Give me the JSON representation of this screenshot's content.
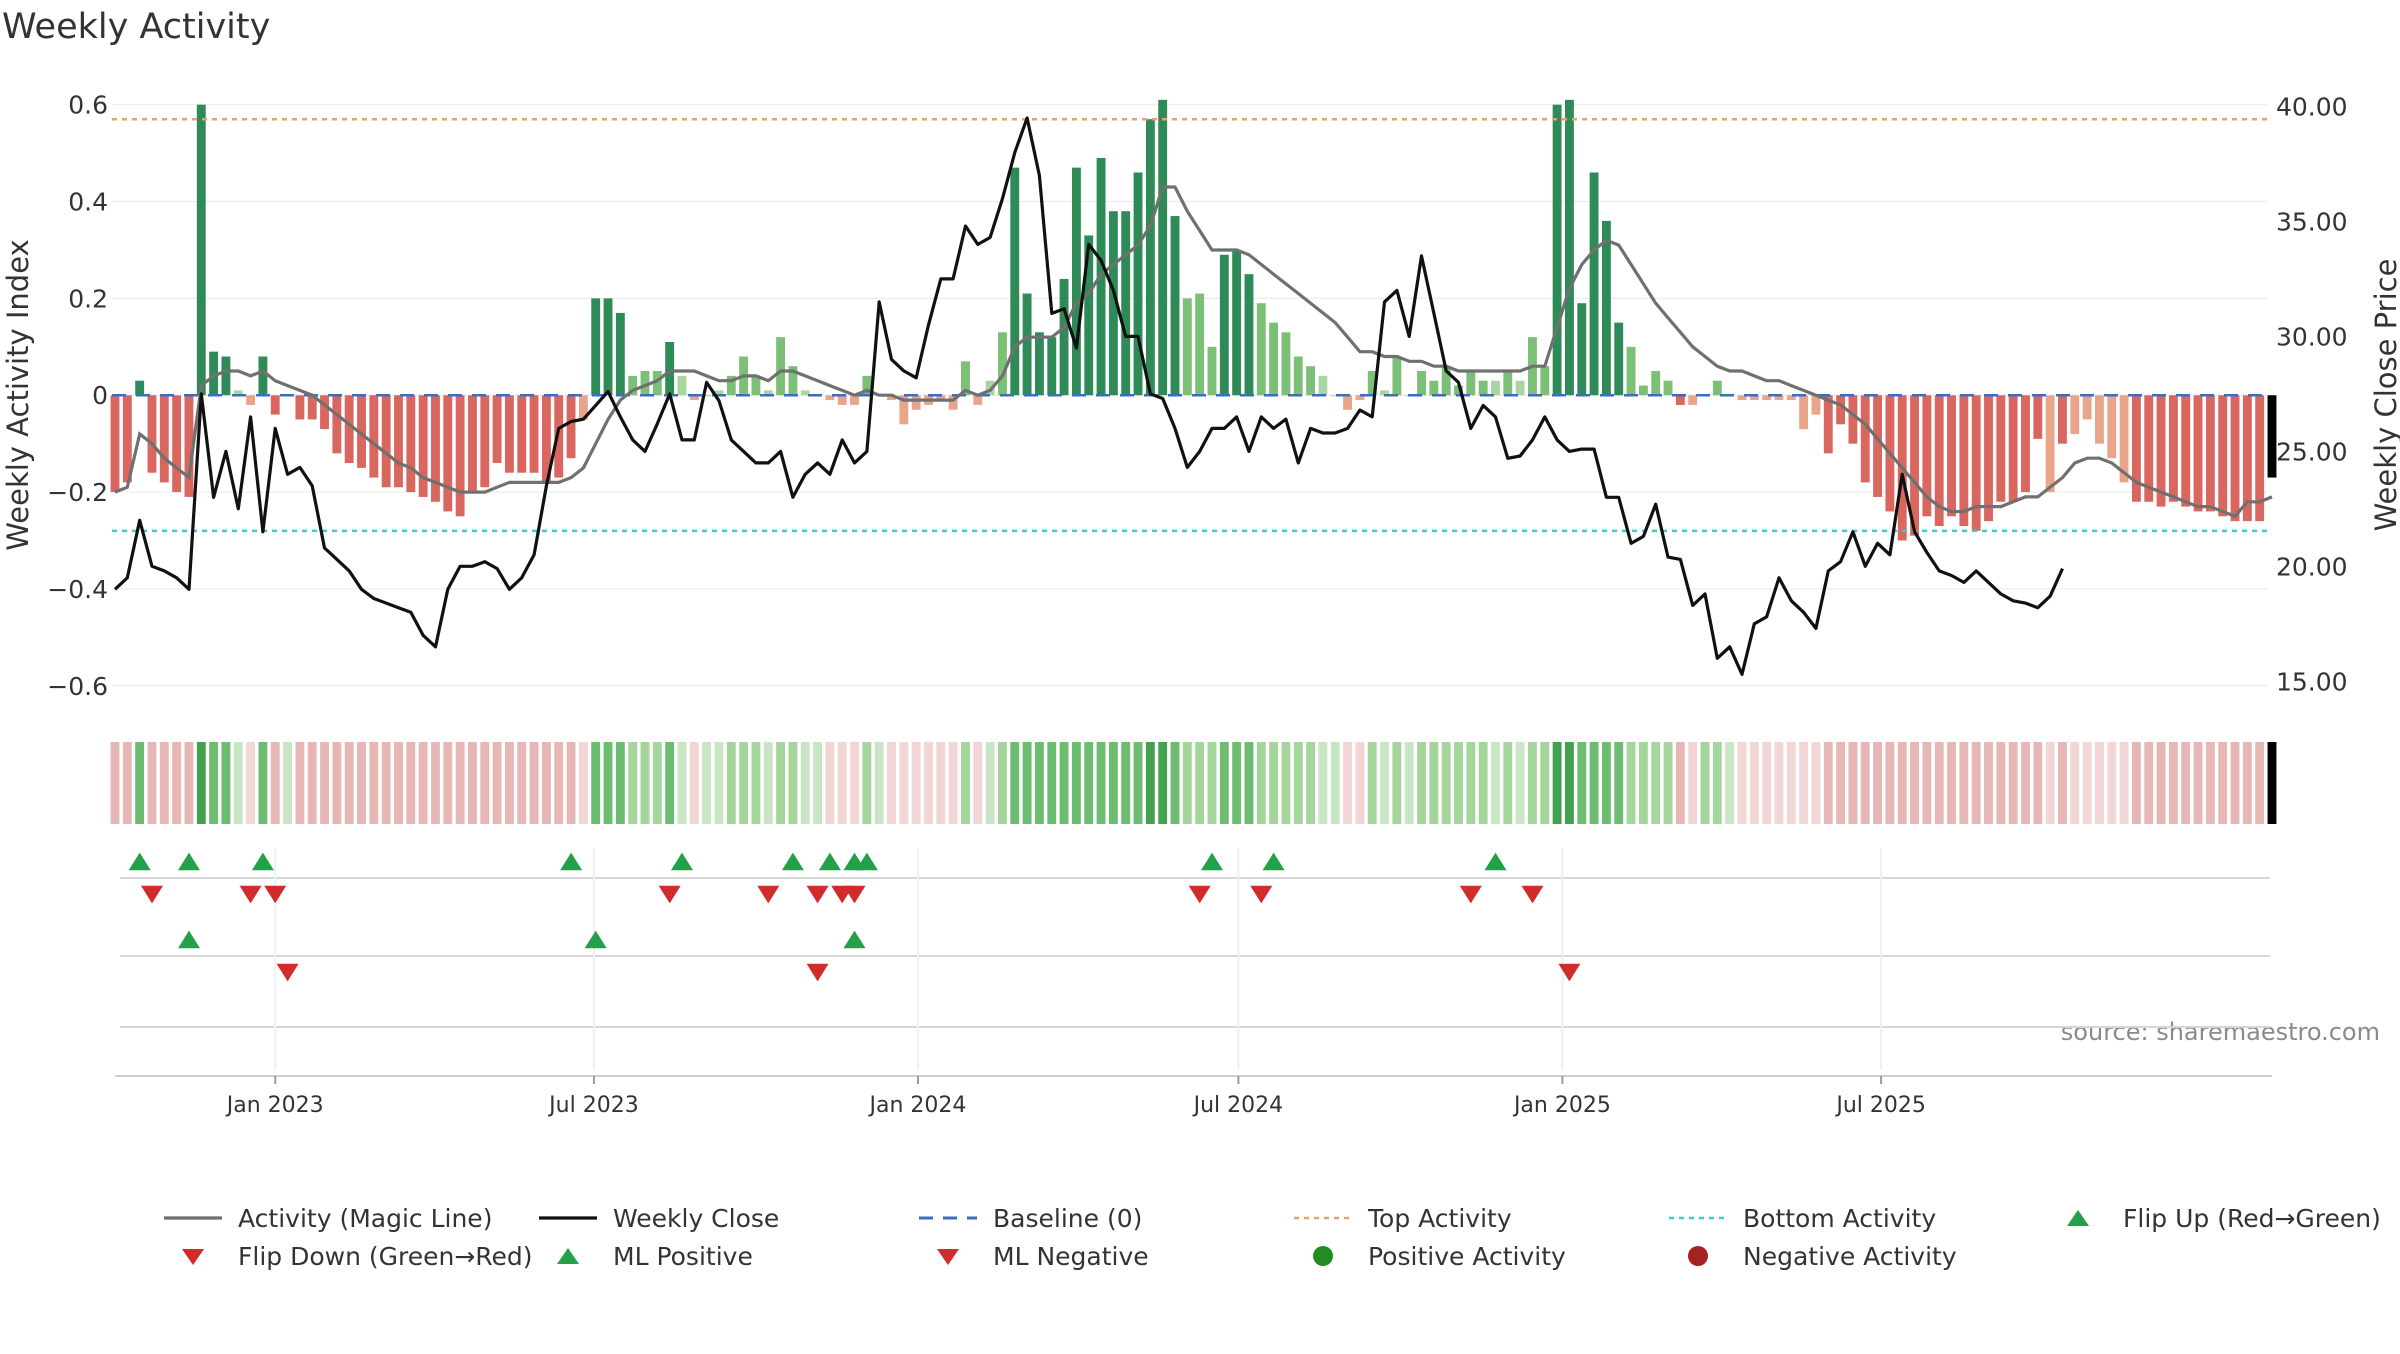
{
  "chart_data": {
    "type": "bar",
    "title": "Weekly Activity",
    "ylabel_left": "Weekly Activity Index",
    "ylabel_right": "Weekly Close Price",
    "source": "source: sharemaestro.com",
    "ylim_left": [
      -0.65,
      0.62
    ],
    "ylim_right": [
      13.75,
      40.5
    ],
    "yticks_left": [
      0.6,
      0.4,
      0.2,
      0,
      -0.2,
      -0.4,
      -0.6
    ],
    "yticks_left_labels": [
      "0.6",
      "0.4",
      "0.2",
      "0",
      "−0.2",
      "−0.4",
      "−0.6"
    ],
    "yticks_right": [
      40,
      35,
      30,
      25,
      20,
      15
    ],
    "yticks_right_labels": [
      "40.00",
      "35.00",
      "30.00",
      "25.00",
      "20.00",
      "15.00"
    ],
    "x_start": "2022-10-02",
    "x_step_days": 7,
    "x_tick_labels": [
      {
        "date": "2023-01-01",
        "label": "Jan 2023"
      },
      {
        "date": "2023-07-01",
        "label": "Jul 2023"
      },
      {
        "date": "2024-01-01",
        "label": "Jan 2024"
      },
      {
        "date": "2024-07-01",
        "label": "Jul 2024"
      },
      {
        "date": "2025-01-01",
        "label": "Jan 2025"
      },
      {
        "date": "2025-07-01",
        "label": "Jul 2025"
      }
    ],
    "top_activity": 0.57,
    "bottom_activity": -0.28,
    "baseline": 0,
    "weekly_activity": [
      -0.2,
      -0.18,
      0.03,
      -0.16,
      -0.18,
      -0.2,
      -0.21,
      0.6,
      0.09,
      0.08,
      0.01,
      -0.02,
      0.08,
      -0.04,
      0.0,
      -0.05,
      -0.05,
      -0.07,
      -0.12,
      -0.14,
      -0.15,
      -0.17,
      -0.19,
      -0.19,
      -0.2,
      -0.21,
      -0.22,
      -0.24,
      -0.25,
      -0.2,
      -0.19,
      -0.14,
      -0.16,
      -0.16,
      -0.16,
      -0.18,
      -0.17,
      -0.13,
      -0.05,
      0.2,
      0.2,
      0.17,
      0.04,
      0.05,
      0.05,
      0.11,
      0.04,
      -0.01,
      0.0,
      0.01,
      0.04,
      0.08,
      0.04,
      0.01,
      0.12,
      0.06,
      0.01,
      0.0,
      -0.01,
      -0.02,
      -0.02,
      0.04,
      0.0,
      -0.01,
      -0.06,
      -0.03,
      -0.02,
      -0.01,
      -0.03,
      0.07,
      -0.02,
      0.03,
      0.13,
      0.47,
      0.21,
      0.13,
      0.12,
      0.24,
      0.47,
      0.33,
      0.49,
      0.38,
      0.38,
      0.46,
      0.57,
      0.61,
      0.37,
      0.2,
      0.21,
      0.1,
      0.29,
      0.3,
      0.25,
      0.19,
      0.15,
      0.13,
      0.08,
      0.06,
      0.04,
      0.0,
      -0.03,
      -0.01,
      0.05,
      0.01,
      0.08,
      0.0,
      0.05,
      0.03,
      0.06,
      0.02,
      0.05,
      0.03,
      0.03,
      0.05,
      0.03,
      0.12,
      0.06,
      0.6,
      0.61,
      0.19,
      0.46,
      0.36,
      0.15,
      0.1,
      0.02,
      0.05,
      0.03,
      -0.02,
      -0.02,
      0.0,
      0.03,
      0.0,
      -0.01,
      -0.01,
      -0.01,
      -0.01,
      -0.01,
      -0.07,
      -0.04,
      -0.12,
      -0.06,
      -0.1,
      -0.18,
      -0.21,
      -0.24,
      -0.3,
      -0.29,
      -0.25,
      -0.27,
      -0.25,
      -0.27,
      -0.28,
      -0.26,
      -0.22,
      -0.22,
      -0.2,
      -0.09,
      -0.2,
      -0.1,
      -0.08,
      -0.05,
      -0.1,
      -0.13,
      -0.18,
      -0.22,
      -0.22,
      -0.23,
      -0.22,
      -0.23,
      -0.24,
      -0.24,
      -0.25,
      -0.26,
      -0.26,
      -0.26,
      -0.17
    ],
    "magic_line": [
      -0.2,
      -0.19,
      -0.08,
      -0.1,
      -0.13,
      -0.15,
      -0.17,
      0.02,
      0.04,
      0.05,
      0.05,
      0.04,
      0.05,
      0.03,
      0.02,
      0.01,
      0.0,
      -0.02,
      -0.04,
      -0.06,
      -0.08,
      -0.1,
      -0.12,
      -0.14,
      -0.15,
      -0.17,
      -0.18,
      -0.19,
      -0.2,
      -0.2,
      -0.2,
      -0.19,
      -0.18,
      -0.18,
      -0.18,
      -0.18,
      -0.18,
      -0.17,
      -0.15,
      -0.1,
      -0.05,
      -0.01,
      0.01,
      0.02,
      0.03,
      0.05,
      0.05,
      0.05,
      0.04,
      0.03,
      0.03,
      0.04,
      0.04,
      0.03,
      0.05,
      0.05,
      0.04,
      0.03,
      0.02,
      0.01,
      0.0,
      0.01,
      0.0,
      0.0,
      -0.01,
      -0.01,
      -0.01,
      -0.01,
      -0.01,
      0.01,
      0.0,
      0.01,
      0.04,
      0.1,
      0.12,
      0.12,
      0.12,
      0.14,
      0.19,
      0.21,
      0.25,
      0.27,
      0.29,
      0.31,
      0.35,
      0.43,
      0.43,
      0.38,
      0.34,
      0.3,
      0.3,
      0.3,
      0.29,
      0.27,
      0.25,
      0.23,
      0.21,
      0.19,
      0.17,
      0.15,
      0.12,
      0.09,
      0.09,
      0.08,
      0.08,
      0.07,
      0.07,
      0.06,
      0.06,
      0.05,
      0.05,
      0.05,
      0.05,
      0.05,
      0.05,
      0.06,
      0.06,
      0.14,
      0.22,
      0.27,
      0.3,
      0.32,
      0.31,
      0.27,
      0.23,
      0.19,
      0.16,
      0.13,
      0.1,
      0.08,
      0.06,
      0.05,
      0.05,
      0.04,
      0.03,
      0.03,
      0.02,
      0.01,
      0.0,
      -0.01,
      -0.02,
      -0.04,
      -0.06,
      -0.09,
      -0.12,
      -0.15,
      -0.18,
      -0.21,
      -0.23,
      -0.24,
      -0.24,
      -0.23,
      -0.23,
      -0.23,
      -0.22,
      -0.21,
      -0.21,
      -0.19,
      -0.17,
      -0.14,
      -0.13,
      -0.13,
      -0.14,
      -0.16,
      -0.18,
      -0.19,
      -0.2,
      -0.21,
      -0.22,
      -0.23,
      -0.23,
      -0.24,
      -0.25,
      -0.22,
      -0.22,
      -0.21
    ],
    "weekly_close": [
      19.0,
      19.5,
      22.0,
      20.0,
      19.8,
      19.5,
      19.0,
      27.5,
      23.0,
      25.0,
      22.5,
      26.5,
      21.5,
      26.0,
      24.0,
      24.3,
      23.5,
      20.8,
      20.3,
      19.8,
      19.0,
      18.6,
      18.4,
      18.2,
      18.0,
      17.0,
      16.5,
      19.0,
      20.0,
      20.0,
      20.2,
      19.9,
      19.0,
      19.5,
      20.5,
      23.5,
      26.0,
      26.3,
      26.4,
      27.0,
      27.6,
      26.5,
      25.5,
      25.0,
      26.2,
      27.5,
      25.5,
      25.5,
      28.0,
      27.2,
      25.5,
      25.0,
      24.5,
      24.5,
      25.0,
      23.0,
      24.0,
      24.5,
      24.0,
      25.5,
      24.5,
      25.0,
      31.5,
      29.0,
      28.5,
      28.2,
      30.5,
      32.5,
      32.5,
      34.8,
      34.0,
      34.3,
      36.0,
      38.0,
      39.5,
      37.0,
      31.0,
      31.2,
      29.5,
      34.0,
      33.3,
      32.0,
      30.0,
      30.0,
      27.5,
      27.3,
      26.0,
      24.3,
      25.0,
      26.0,
      26.0,
      26.5,
      25.0,
      26.5,
      26.0,
      26.4,
      24.5,
      26.0,
      25.8,
      25.8,
      26.0,
      26.8,
      26.5,
      31.5,
      32.0,
      30.0,
      33.5,
      31.0,
      28.5,
      28.0,
      26.0,
      27.0,
      26.5,
      24.7,
      24.8,
      25.5,
      26.5,
      25.5,
      25.0,
      25.1,
      25.1,
      23.0,
      23.0,
      21.0,
      21.3,
      22.7,
      20.4,
      20.3,
      18.3,
      18.8,
      16.0,
      16.5,
      15.3,
      17.5,
      17.8,
      19.5,
      18.5,
      18.0,
      17.3,
      19.8,
      20.2,
      21.5,
      20.0,
      21.0,
      20.5,
      24.0,
      21.5,
      20.6,
      19.8,
      19.6,
      19.3,
      19.8,
      19.3,
      18.8,
      18.5,
      18.4,
      18.2,
      18.7,
      19.9
    ],
    "bar_tint": [
      1,
      1,
      2,
      1,
      1,
      1,
      1,
      3,
      2,
      2,
      0,
      0,
      2,
      1,
      0,
      1,
      1,
      1,
      1,
      1,
      1,
      1,
      1,
      1,
      1,
      1,
      1,
      1,
      1,
      1,
      1,
      1,
      1,
      1,
      1,
      1,
      1,
      1,
      0,
      2,
      2,
      2,
      1,
      1,
      1,
      2,
      0,
      0,
      0,
      0,
      1,
      1,
      1,
      0,
      1,
      1,
      0,
      0,
      0,
      0,
      0,
      1,
      0,
      0,
      0,
      0,
      0,
      0,
      0,
      1,
      0,
      0,
      1,
      2,
      2,
      2,
      2,
      2,
      2,
      2,
      2,
      2,
      2,
      2,
      3,
      3,
      2,
      1,
      1,
      1,
      2,
      2,
      2,
      1,
      1,
      1,
      1,
      1,
      0,
      0,
      0,
      0,
      1,
      0,
      1,
      0,
      1,
      1,
      1,
      1,
      1,
      1,
      0,
      1,
      0,
      1,
      1,
      3,
      3,
      2,
      2,
      2,
      2,
      1,
      1,
      1,
      1,
      1,
      0,
      1,
      1,
      0,
      0,
      0,
      0,
      0,
      0,
      0,
      0,
      1,
      1,
      1,
      1,
      1,
      1,
      1,
      1,
      1,
      1,
      1,
      1,
      1,
      1,
      1,
      1,
      1,
      1,
      0,
      1,
      0,
      0,
      0,
      0,
      0,
      1,
      1,
      1,
      1,
      1,
      1,
      1,
      1,
      1,
      1,
      1
    ],
    "flips": [
      {
        "date": "2022-10-16",
        "dir": "up"
      },
      {
        "date": "2022-10-23",
        "dir": "down"
      },
      {
        "date": "2022-11-13",
        "dir": "up"
      },
      {
        "date": "2022-12-18",
        "dir": "down"
      },
      {
        "date": "2022-12-25",
        "dir": "up"
      },
      {
        "date": "2023-01-01",
        "dir": "down"
      },
      {
        "date": "2023-06-18",
        "dir": "up"
      },
      {
        "date": "2023-08-13",
        "dir": "down"
      },
      {
        "date": "2023-08-20",
        "dir": "up"
      },
      {
        "date": "2023-10-08",
        "dir": "down"
      },
      {
        "date": "2023-10-22",
        "dir": "up"
      },
      {
        "date": "2023-11-05",
        "dir": "down"
      },
      {
        "date": "2023-11-12",
        "dir": "up"
      },
      {
        "date": "2023-11-19",
        "dir": "down"
      },
      {
        "date": "2023-11-26",
        "dir": "up"
      },
      {
        "date": "2023-11-26",
        "dir": "down"
      },
      {
        "date": "2023-12-03",
        "dir": "up"
      },
      {
        "date": "2024-06-09",
        "dir": "down"
      },
      {
        "date": "2024-06-16",
        "dir": "up"
      },
      {
        "date": "2024-07-14",
        "dir": "down"
      },
      {
        "date": "2024-07-21",
        "dir": "up"
      },
      {
        "date": "2024-11-10",
        "dir": "down"
      },
      {
        "date": "2024-11-24",
        "dir": "up"
      },
      {
        "date": "2024-12-15",
        "dir": "down"
      }
    ],
    "ml_signals": [
      {
        "date": "2022-11-13",
        "dir": "up"
      },
      {
        "date": "2023-01-08",
        "dir": "down"
      },
      {
        "date": "2023-07-02",
        "dir": "up"
      },
      {
        "date": "2023-11-05",
        "dir": "down"
      },
      {
        "date": "2023-11-26",
        "dir": "up"
      },
      {
        "date": "2025-01-05",
        "dir": "down"
      }
    ],
    "colors": {
      "bar_green": [
        "#a9d6a0",
        "#7cbf76",
        "#2e8b57",
        "#2e8b57"
      ],
      "bar_red": [
        "#e8a58a",
        "#d9675f",
        "#d46a5c",
        "#c0392b"
      ],
      "strip_green": [
        "#c8e6c3",
        "#a4d69b",
        "#6dbd70",
        "#43a150"
      ],
      "strip_red": [
        "#f2d5d5",
        "#e7b7b5",
        "#dda5a2",
        "#d49a97"
      ],
      "magic_line": "#707070",
      "weekly_close": "#111111",
      "baseline": "#3a6fbf",
      "top_activity": "#e7a36a",
      "bottom_activity": "#3fcccc",
      "up_marker": "#24a048",
      "down_marker": "#d22b2b",
      "positive_dot": "#228b22",
      "negative_dot": "#a52222"
    },
    "legend": [
      {
        "label": "Activity (Magic Line)",
        "kind": "line",
        "key": "magic_line"
      },
      {
        "label": "Weekly Close",
        "kind": "line",
        "key": "weekly_close"
      },
      {
        "label": "Baseline (0)",
        "kind": "dash",
        "key": "baseline"
      },
      {
        "label": "Top Activity",
        "kind": "dot-line",
        "key": "top_activity"
      },
      {
        "label": "Bottom Activity",
        "kind": "dot-line",
        "key": "bottom_activity"
      },
      {
        "label": "Flip Up (Red→Green)",
        "kind": "tri-up",
        "key": "up_marker"
      },
      {
        "label": "Flip Down (Green→Red)",
        "kind": "tri-down",
        "key": "down_marker"
      },
      {
        "label": "ML Positive",
        "kind": "tri-up",
        "key": "up_marker"
      },
      {
        "label": "ML Negative",
        "kind": "tri-down",
        "key": "down_marker"
      },
      {
        "label": "Positive Activity",
        "kind": "dot",
        "key": "positive_dot"
      },
      {
        "label": "Negative Activity",
        "kind": "dot",
        "key": "negative_dot"
      }
    ]
  }
}
